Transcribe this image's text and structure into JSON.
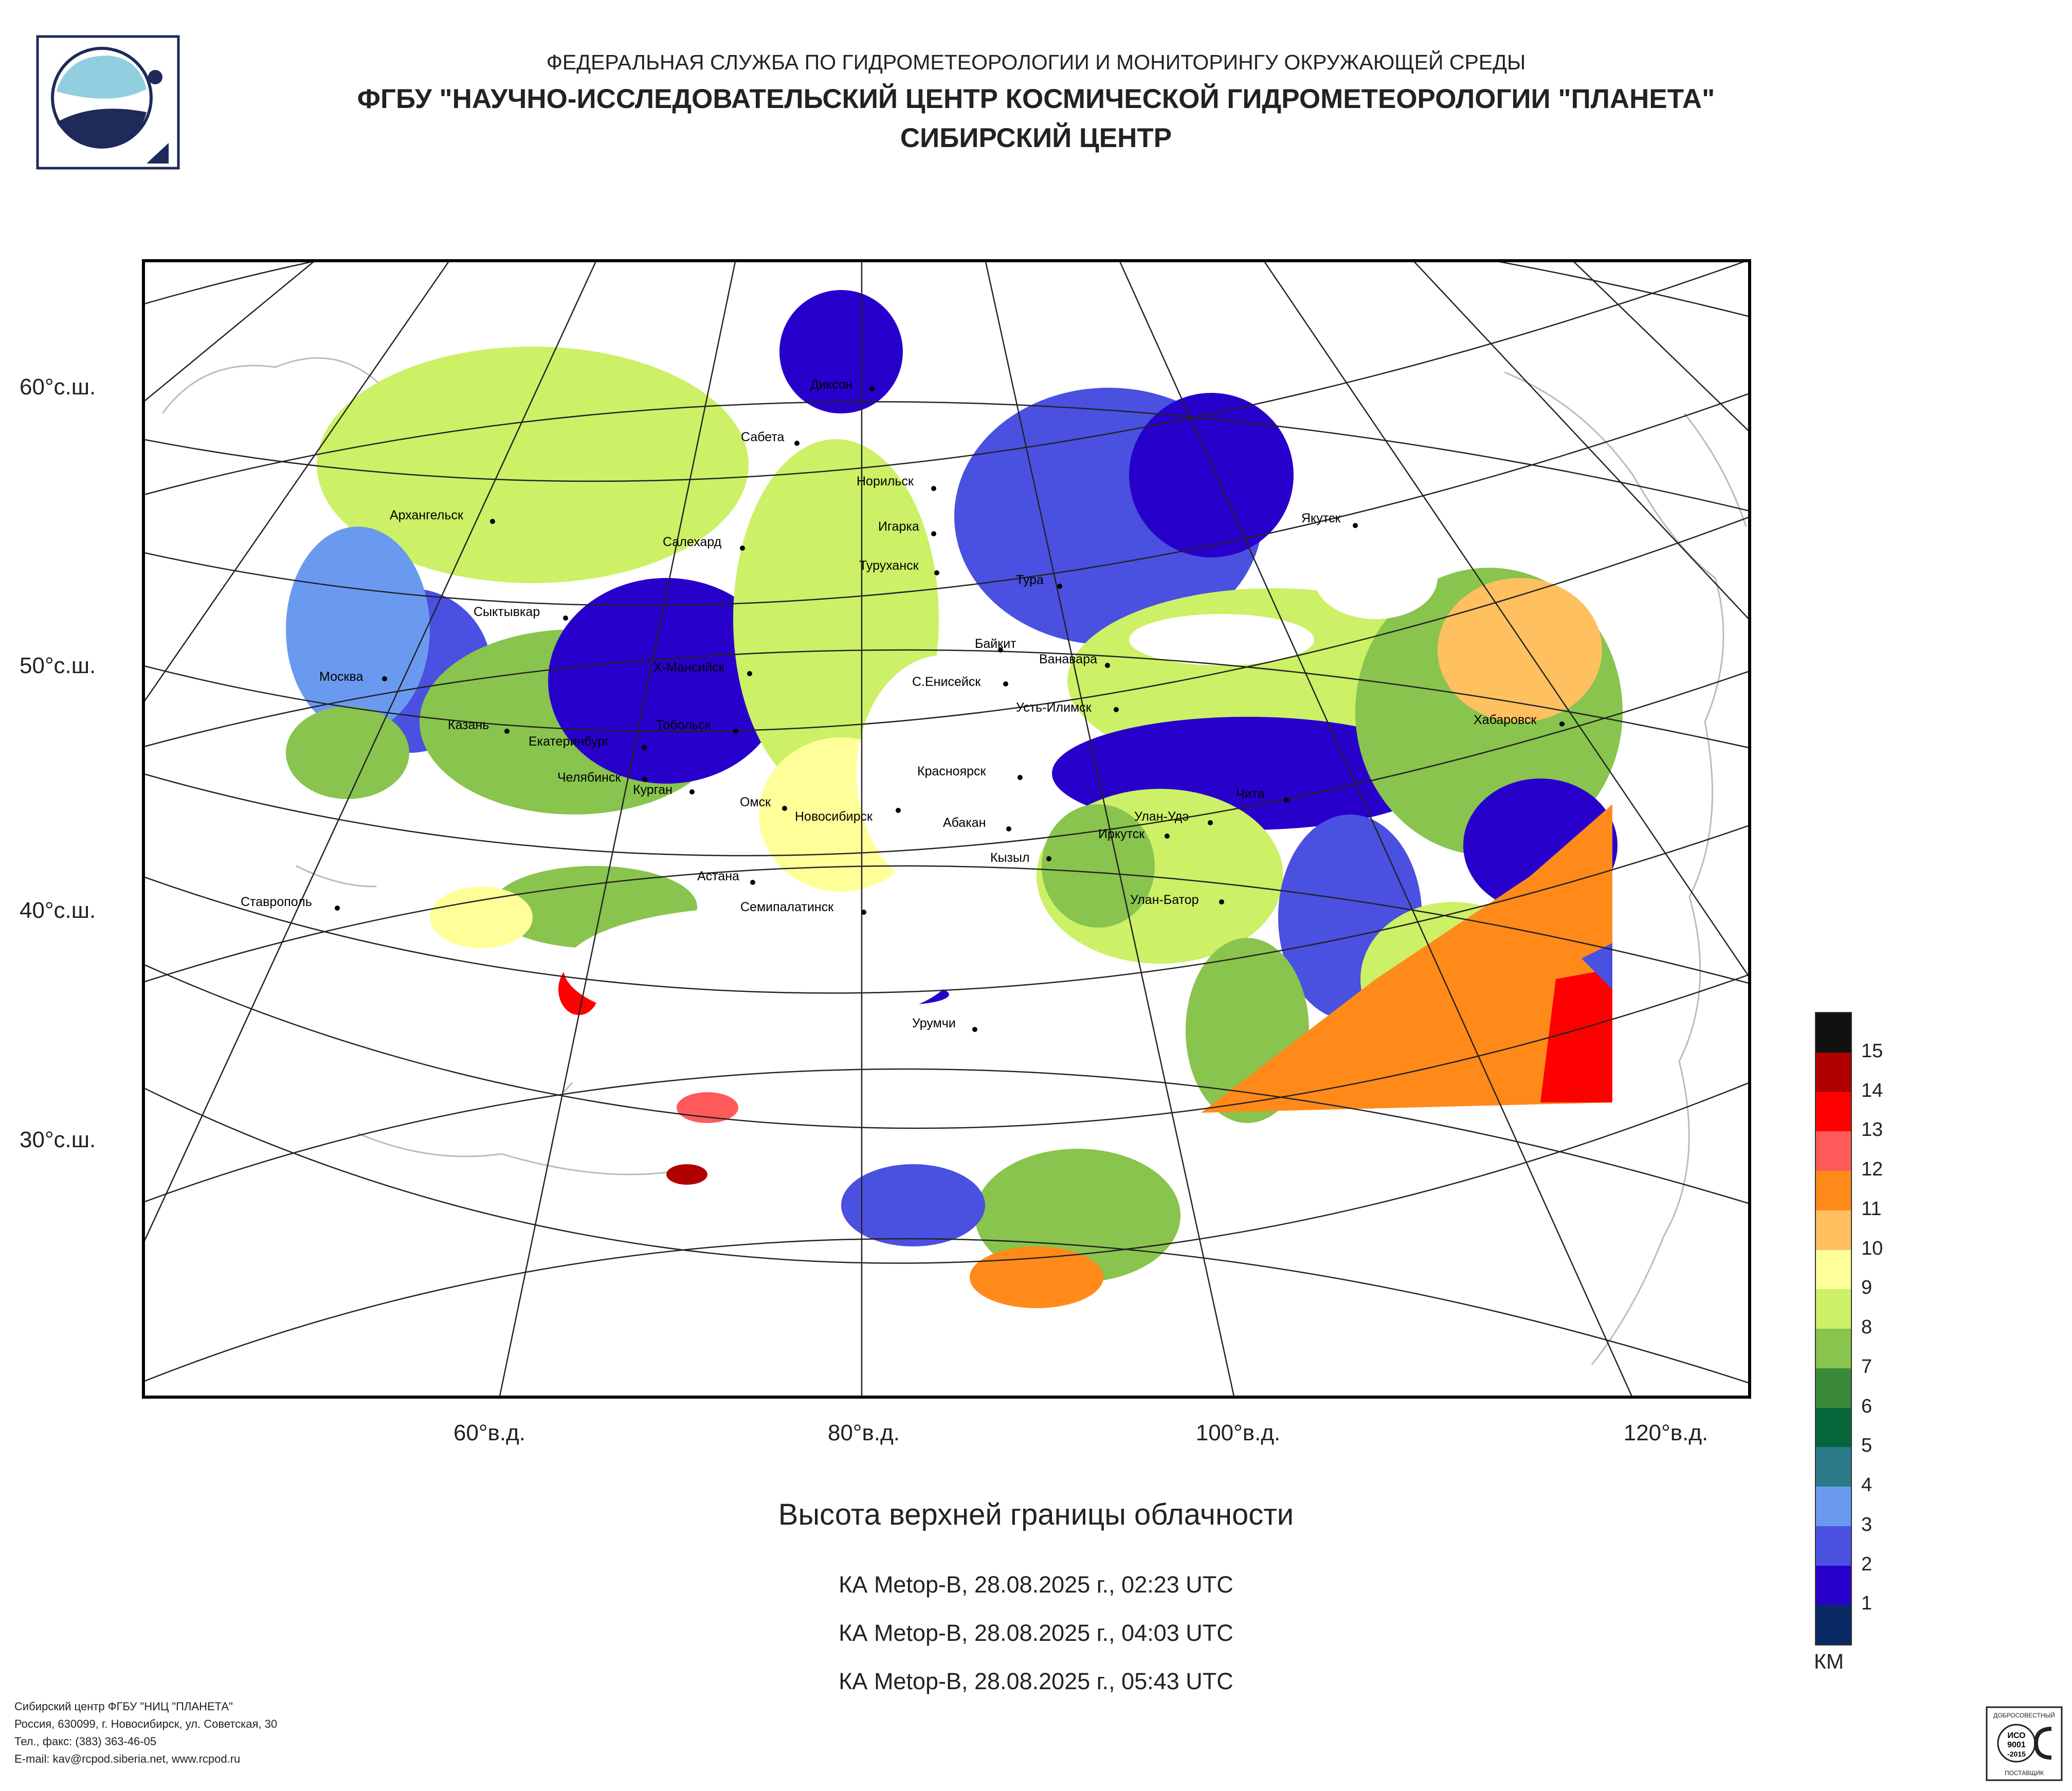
{
  "header": {
    "line1": "ФЕДЕРАЛЬНАЯ СЛУЖБА ПО ГИДРОМЕТЕОРОЛОГИИ И МОНИТОРИНГУ ОКРУЖАЮЩЕЙ СРЕДЫ",
    "line2": "ФГБУ \"НАУЧНО-ИССЛЕДОВАТЕЛЬСКИЙ ЦЕНТР КОСМИЧЕСКОЙ ГИДРОМЕТЕОРОЛОГИИ \"ПЛАНЕТА\"",
    "line3": "СИБИРСКИЙ ЦЕНТР"
  },
  "map": {
    "lat_labels": [
      "60°с.ш.",
      "50°с.ш.",
      "40°с.ш.",
      "30°с.ш."
    ],
    "lon_labels": [
      "60°в.д.",
      "80°в.д.",
      "100°в.д.",
      "120°в.д."
    ],
    "cities": [
      "Диксон",
      "Сабета",
      "Норильск",
      "Архангельск",
      "Салехард",
      "Игарка",
      "Туруханск",
      "Тура",
      "Якутск",
      "Сыктывкар",
      "Байкит",
      "Ванавара",
      "Москва",
      "Х-Мансийск",
      "С.Енисейск",
      "Усть-Илимск",
      "Казань",
      "Тобольск",
      "Хабаровск",
      "Екатеринбург",
      "Челябинск",
      "Курган",
      "Красноярск",
      "Омск",
      "Новосибирск",
      "Чита",
      "Абакан",
      "Улан-Удэ",
      "Иркутск",
      "Кызыл",
      "Астана",
      "Ставрополь",
      "Улан-Батор",
      "Семипалатинск",
      "Урумчи"
    ]
  },
  "title": "Высота верхней границы облачности",
  "satellites": [
    "КА Metop-B, 28.08.2025 г., 02:23 UTC",
    "КА Metop-B, 28.08.2025 г., 04:03 UTC",
    "КА Metop-B, 28.08.2025 г., 05:43 UTC"
  ],
  "legend": {
    "unit": "КМ",
    "levels": [
      "15",
      "14",
      "13",
      "12",
      "11",
      "10",
      "9",
      "8",
      "7",
      "6",
      "5",
      "4",
      "3",
      "2",
      "1"
    ],
    "colors": [
      "#111111",
      "#b00000",
      "#ff0000",
      "#ff5a5a",
      "#ff8a1a",
      "#ffc060",
      "#ffff9a",
      "#ccf066",
      "#88c44e",
      "#3a8a3a",
      "#06663a",
      "#2a7a8a",
      "#6a9af0",
      "#4a50e0",
      "#2800cc",
      "#0a2a66"
    ]
  },
  "footer": {
    "line1": "Сибирский центр ФГБУ \"НИЦ \"ПЛАНЕТА\"",
    "line2": "Россия, 630099, г. Новосибирск, ул. Советская, 30",
    "line3": "Тел., факс: (383) 363-46-05",
    "line4": "E-mail: kav@rcpod.siberia.net, www.rcpod.ru"
  },
  "cert_badge": {
    "top": "ДОБРОСОВЕСТНЫЙ",
    "mid1": "ИСО",
    "mid2": "9001",
    "mid3": "-2015",
    "bottom": "ПОСТАВЩИК"
  }
}
